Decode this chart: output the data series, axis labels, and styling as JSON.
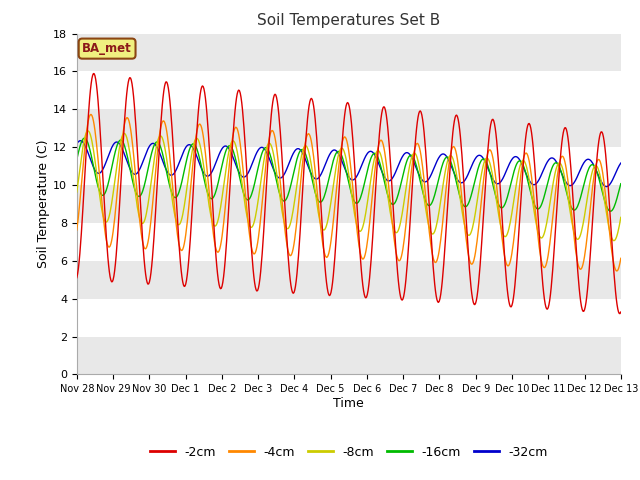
{
  "title": "Soil Temperatures Set B",
  "xlabel": "Time",
  "ylabel": "Soil Temperature (C)",
  "ylim": [
    0,
    18
  ],
  "yticks": [
    0,
    2,
    4,
    6,
    8,
    10,
    12,
    14,
    16,
    18
  ],
  "background_color": "#ffffff",
  "plot_bg_bands": [
    [
      0,
      2,
      "#e8e8e8"
    ],
    [
      2,
      4,
      "#ffffff"
    ],
    [
      4,
      6,
      "#e8e8e8"
    ],
    [
      6,
      8,
      "#ffffff"
    ],
    [
      8,
      10,
      "#e8e8e8"
    ],
    [
      10,
      12,
      "#ffffff"
    ],
    [
      12,
      14,
      "#e8e8e8"
    ],
    [
      14,
      16,
      "#ffffff"
    ],
    [
      16,
      18,
      "#e8e8e8"
    ]
  ],
  "legend_label": "BA_met",
  "legend_bg": "#f0f080",
  "legend_border": "#8b4513",
  "series_colors": {
    "-2cm": "#dd0000",
    "-4cm": "#ff8800",
    "-8cm": "#cccc00",
    "-16cm": "#00bb00",
    "-32cm": "#0000cc"
  },
  "x_tick_labels": [
    "Nov 28",
    "Nov 29",
    "Nov 30",
    "Dec 1",
    "Dec 2",
    "Dec 3",
    "Dec 4",
    "Dec 5",
    "Dec 6",
    "Dec 7",
    "Dec 8",
    "Dec 9",
    "Dec 10",
    "Dec 11",
    "Dec 12",
    "Dec 13"
  ],
  "n_points": 720,
  "time_days": 15,
  "figsize": [
    6.4,
    4.8
  ],
  "dpi": 100
}
